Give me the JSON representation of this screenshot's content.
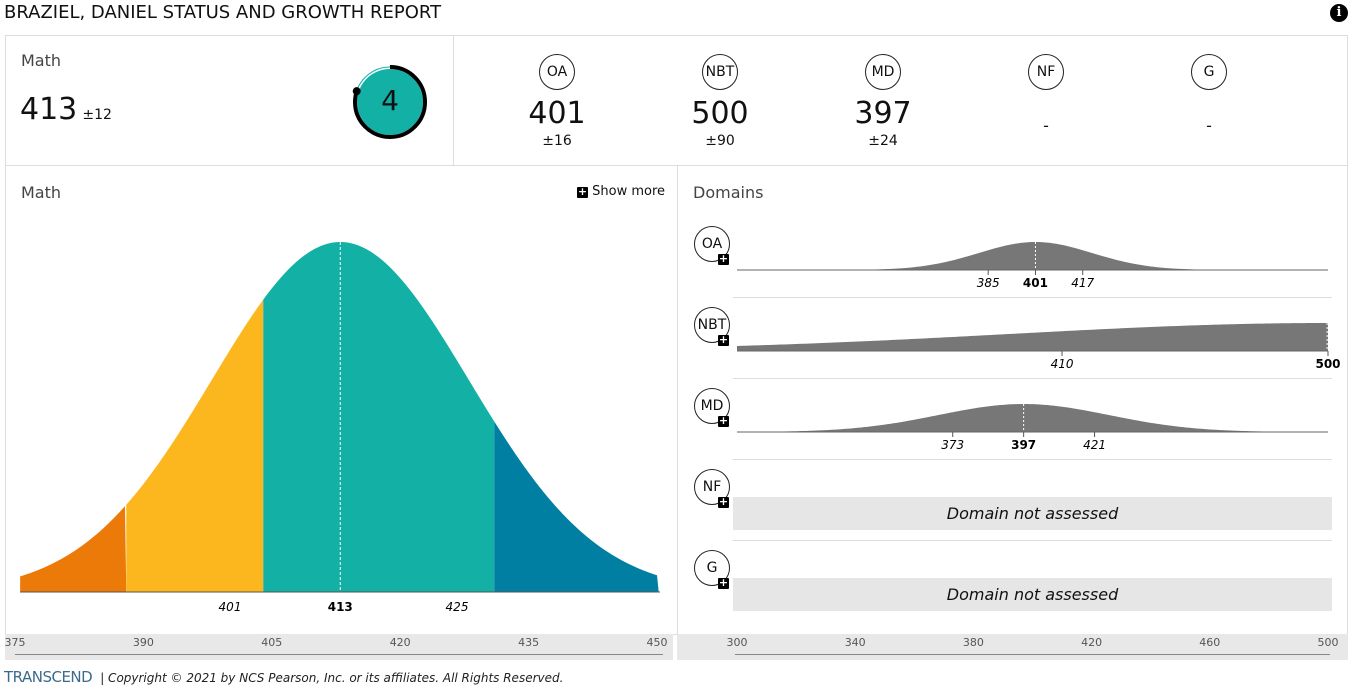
{
  "header": {
    "title": "BRAZIEL, DANIEL STATUS AND GROWTH REPORT",
    "info_icon": "i"
  },
  "summary": {
    "subject": "Math",
    "score": "413",
    "error": "±12",
    "level": "4",
    "level_progress": 0.8
  },
  "domains": [
    {
      "code": "OA",
      "score": "401",
      "error": "±16",
      "mean": 401,
      "sd": 16,
      "low": "385",
      "high": "417"
    },
    {
      "code": "NBT",
      "score": "500",
      "error": "±90",
      "mean": 500,
      "sd": 90,
      "low": "410",
      "high": "500"
    },
    {
      "code": "MD",
      "score": "397",
      "error": "±24",
      "mean": 397,
      "sd": 24,
      "low": "373",
      "high": "421"
    },
    {
      "code": "NF",
      "score": "-",
      "error": "",
      "assessed": false,
      "not_assessed": "Domain not assessed"
    },
    {
      "code": "G",
      "score": "-",
      "error": "",
      "assessed": false,
      "not_assessed": "Domain not assessed"
    }
  ],
  "math_panel": {
    "title": "Math",
    "show_more": "Show more",
    "mean": 413,
    "sd": 12,
    "low": "401",
    "mid": "413",
    "high": "425",
    "axis": [
      "375",
      "390",
      "405",
      "420",
      "435",
      "450"
    ],
    "axis_range": [
      375,
      450
    ],
    "band_cutoffs": [
      388,
      404,
      431
    ],
    "band_colors": [
      "#ec7a08",
      "#fcb71e",
      "#13b1a5",
      "#007fa3"
    ]
  },
  "domains_panel": {
    "title": "Domains",
    "axis": [
      "300",
      "340",
      "380",
      "420",
      "460",
      "500"
    ],
    "axis_range": [
      300,
      500
    ]
  },
  "footer": {
    "logo": "TRANSCEND",
    "copyright": "| Copyright © 2021 by NCS Pearson, Inc. or its affiliates. All Rights Reserved."
  }
}
